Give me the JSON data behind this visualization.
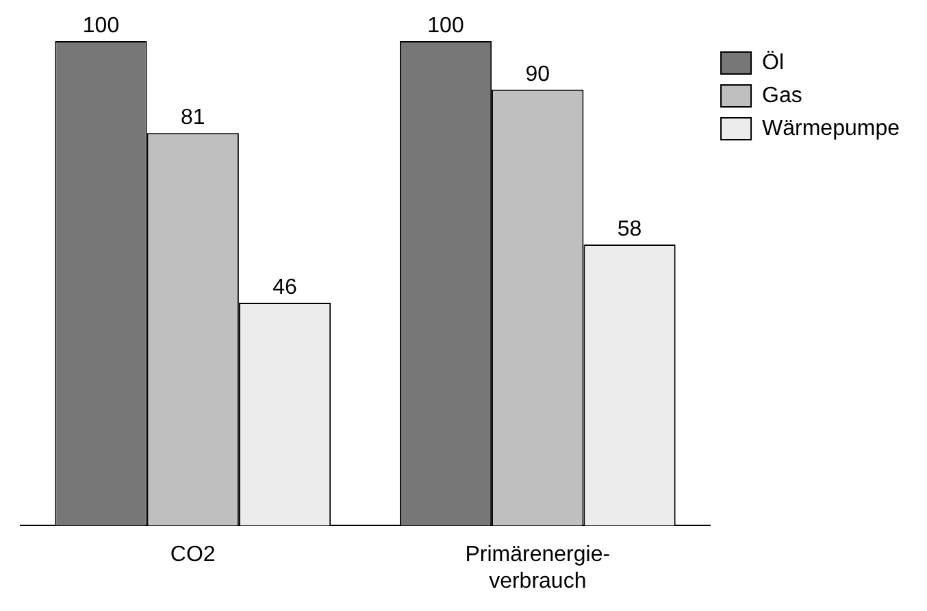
{
  "chart_data": {
    "type": "bar",
    "categories": [
      "CO2",
      "Primärenergie-verbrauch"
    ],
    "series": [
      {
        "name": "Öl",
        "color": "#777777",
        "values": [
          100,
          100
        ]
      },
      {
        "name": "Gas",
        "color": "#bfbfbf",
        "values": [
          81,
          90
        ]
      },
      {
        "name": "Wärmepumpe",
        "color": "#ececec",
        "values": [
          46,
          58
        ]
      }
    ],
    "ylim": [
      0,
      100
    ],
    "tick_labels": "x",
    "grid": false,
    "legend": "top right",
    "data_labels": true
  }
}
